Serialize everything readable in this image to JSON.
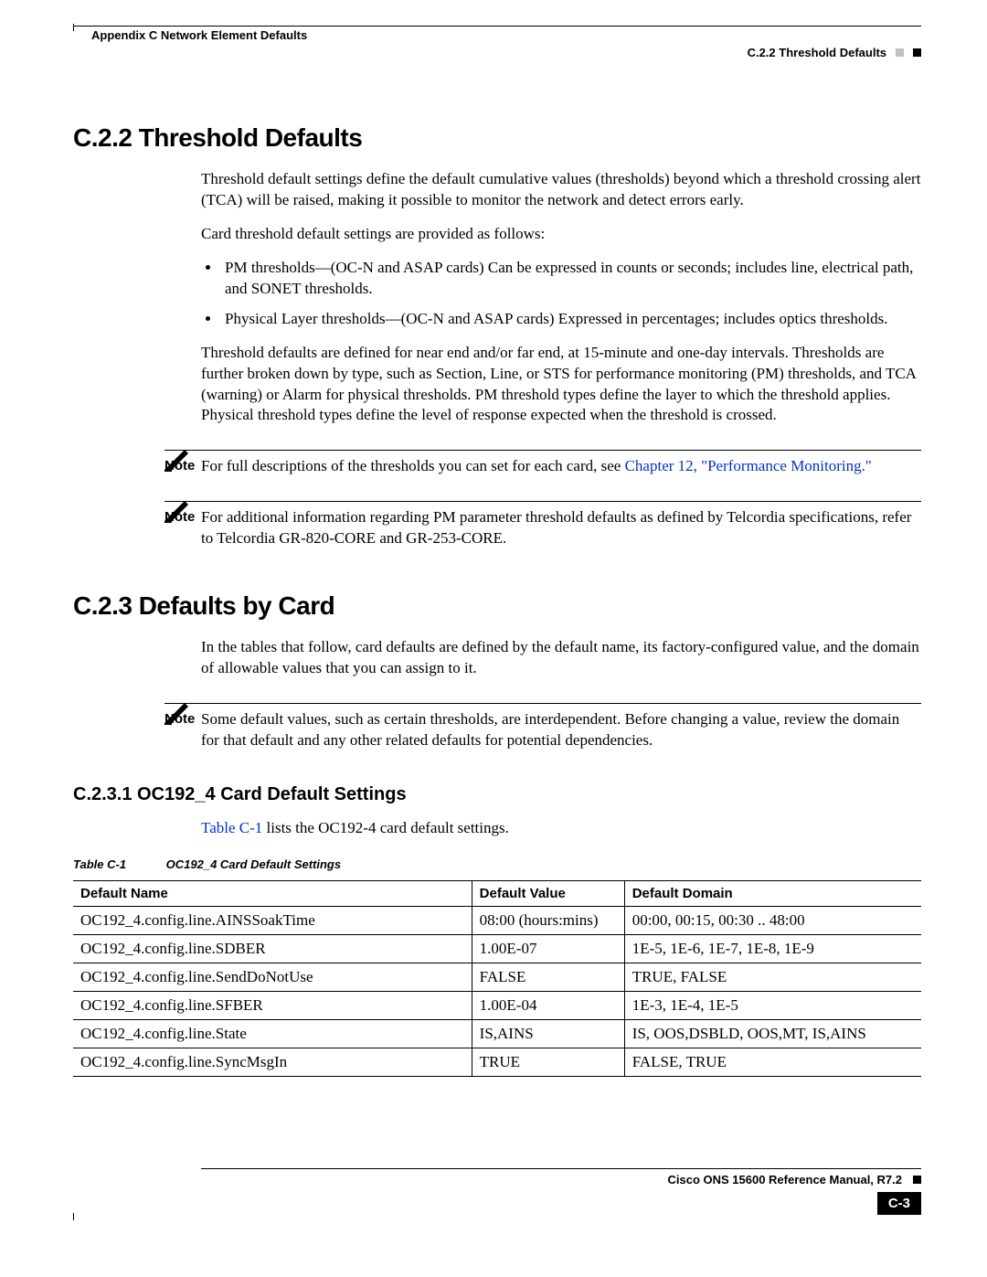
{
  "header": {
    "left": "Appendix C Network Element Defaults",
    "right": "C.2.2  Threshold Defaults"
  },
  "s1": {
    "heading": "C.2.2  Threshold Defaults",
    "p1": "Threshold default settings define the default cumulative values (thresholds) beyond which a threshold crossing alert (TCA) will be raised, making it possible to monitor the network and detect errors early.",
    "p2": "Card threshold default settings are provided as follows:",
    "b1": "PM thresholds—(OC-N and ASAP cards) Can be expressed in counts or seconds; includes line, electrical path, and SONET thresholds.",
    "b2": "Physical Layer thresholds—(OC-N and ASAP cards) Expressed in percentages; includes optics thresholds.",
    "p3": "Threshold defaults are defined for near end and/or far end, at 15-minute and one-day intervals. Thresholds are further broken down by type, such as Section, Line, or STS for performance monitoring (PM) thresholds, and TCA (warning) or Alarm for physical thresholds. PM threshold types define the layer to which the threshold applies. Physical threshold types define the level of response expected when the threshold is crossed.",
    "note1_pre": "For full descriptions of the thresholds you can set for each card, see ",
    "note1_link": "Chapter 12, \"Performance Monitoring.\"",
    "note2": "For additional information regarding PM parameter threshold defaults as defined by Telcordia specifications, refer to Telcordia GR-820-CORE and GR-253-CORE.",
    "note_label": "Note"
  },
  "s2": {
    "heading": "C.2.3  Defaults by Card",
    "p1": "In the tables that follow, card defaults are defined by the default name, its factory-configured value, and the domain of allowable values that you can assign to it.",
    "note1": "Some default values, such as certain thresholds, are interdependent. Before changing a value, review the domain for that default and any other related defaults for potential dependencies."
  },
  "s3": {
    "heading": "C.2.3.1  OC192_4 Card Default Settings",
    "intro_link": "Table C-1",
    "intro_rest": " lists the OC192-4 card default settings.",
    "caption_lead": "Table C-1",
    "caption_title": "OC192_4 Card Default Settings"
  },
  "table": {
    "h1": "Default Name",
    "h2": "Default Value",
    "h3": "Default Domain",
    "rows": [
      {
        "n": "OC192_4.config.line.AINSSoakTime",
        "v": "08:00 (hours:mins)",
        "d": "00:00, 00:15, 00:30 .. 48:00"
      },
      {
        "n": "OC192_4.config.line.SDBER",
        "v": "1.00E-07",
        "d": "1E-5, 1E-6, 1E-7, 1E-8, 1E-9"
      },
      {
        "n": "OC192_4.config.line.SendDoNotUse",
        "v": "FALSE",
        "d": "TRUE, FALSE"
      },
      {
        "n": "OC192_4.config.line.SFBER",
        "v": "1.00E-04",
        "d": "1E-3, 1E-4, 1E-5"
      },
      {
        "n": "OC192_4.config.line.State",
        "v": "IS,AINS",
        "d": "IS, OOS,DSBLD, OOS,MT, IS,AINS"
      },
      {
        "n": "OC192_4.config.line.SyncMsgIn",
        "v": "TRUE",
        "d": "FALSE, TRUE"
      }
    ]
  },
  "footer": {
    "title": "Cisco ONS 15600 Reference Manual, R7.2",
    "page": "C-3"
  }
}
